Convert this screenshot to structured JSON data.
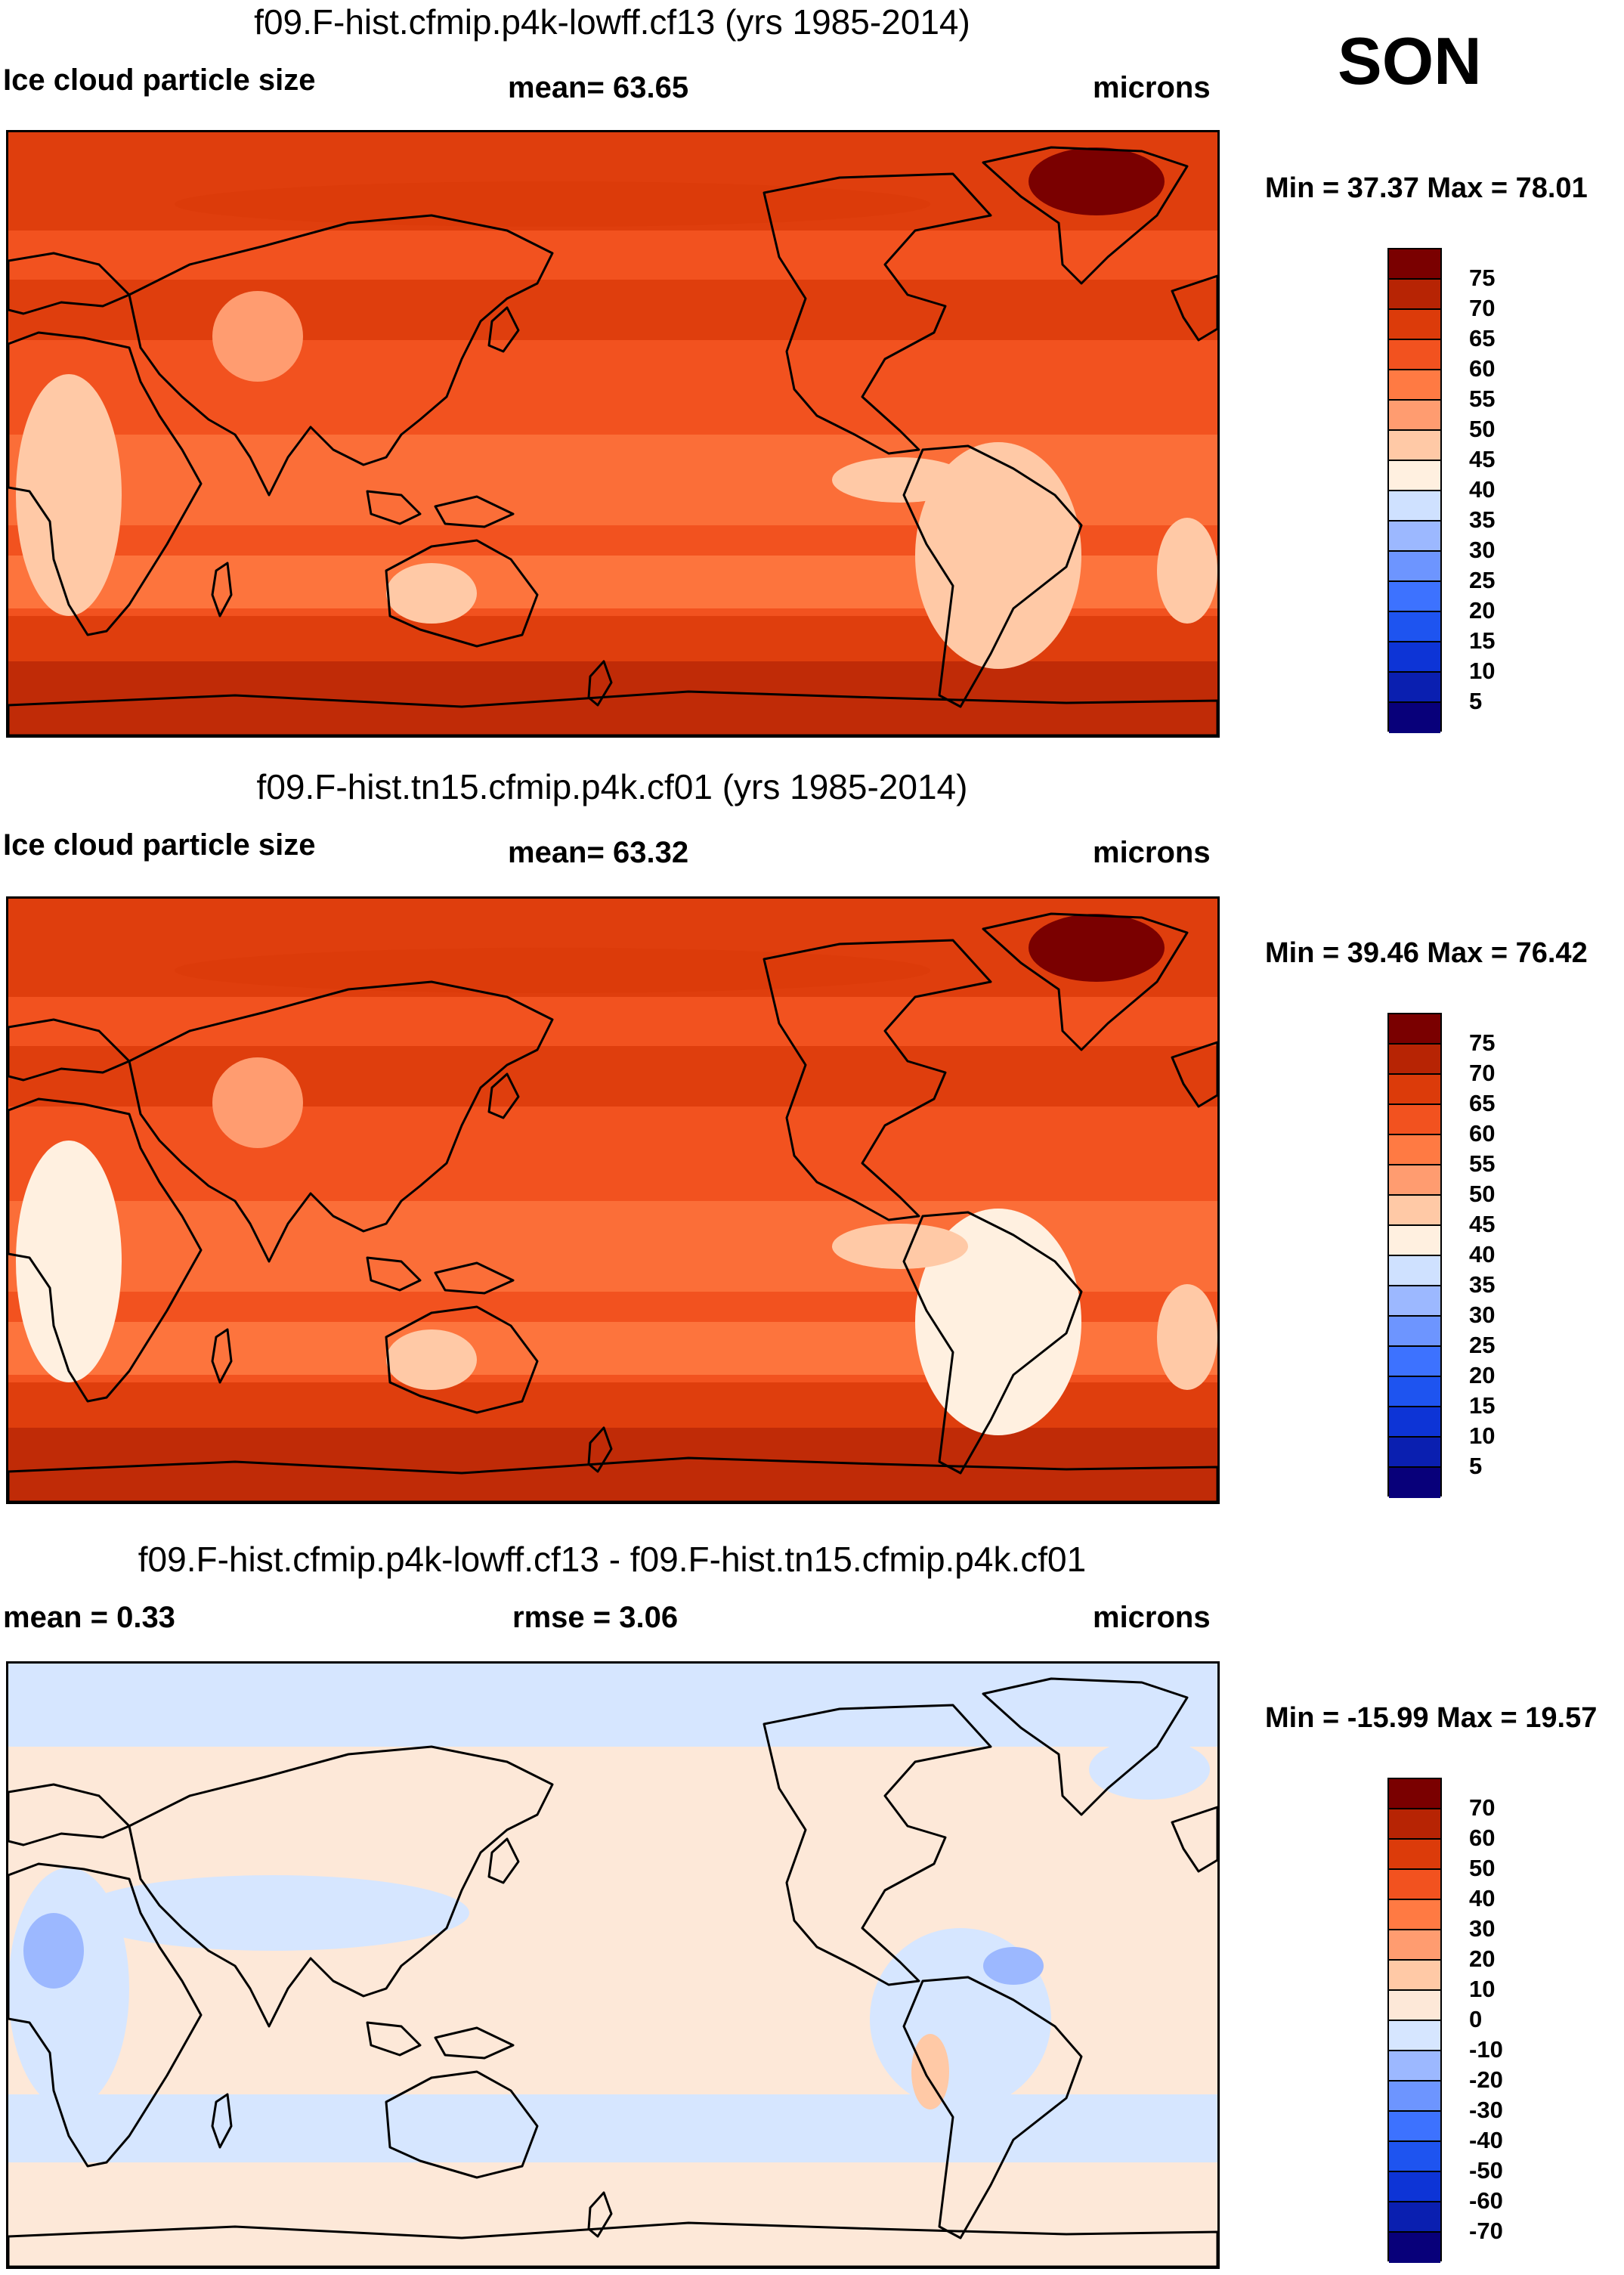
{
  "season": "SON",
  "colors": {
    "coast": "#000000",
    "abs_levels": [
      "#08007a",
      "#0a1fb0",
      "#0d34d6",
      "#1e54f0",
      "#3d72ff",
      "#6d95ff",
      "#9cb8ff",
      "#cfe1ff",
      "#fff0e0",
      "#ffc9a6",
      "#ff9c70",
      "#ff7a43",
      "#f2521f",
      "#dc3b0a",
      "#b72404",
      "#7a0000"
    ],
    "diff_levels": [
      "#08007a",
      "#0a1fb0",
      "#0d34d6",
      "#1e54f0",
      "#3d72ff",
      "#6d95ff",
      "#9cb8ff",
      "#d6e6ff",
      "#fde8d8",
      "#ffc9a6",
      "#ff9c70",
      "#ff7a43",
      "#f2521f",
      "#dc3b0a",
      "#b72404",
      "#7a0000"
    ]
  },
  "chart_data": [
    {
      "type": "heatmap",
      "title": "f09.F-hist.cfmip.p4k-lowff.cf13 (yrs 1985-2014)",
      "left_label": "Ice cloud particle size",
      "stat_label": "mean=  63.65",
      "units": "microns",
      "mean": 63.65,
      "min_max_label": "Min =  37.37 Max =  78.01",
      "min": 37.37,
      "max": 78.01,
      "colorbar_labels": [
        "75",
        "70",
        "65",
        "60",
        "55",
        "50",
        "45",
        "40",
        "35",
        "30",
        "25",
        "20",
        "15",
        "10",
        "5"
      ]
    },
    {
      "type": "heatmap",
      "title": "f09.F-hist.tn15.cfmip.p4k.cf01 (yrs 1985-2014)",
      "left_label": "Ice cloud particle size",
      "stat_label": "mean=  63.32",
      "units": "microns",
      "mean": 63.32,
      "min_max_label": "Min =  39.46 Max =  76.42",
      "min": 39.46,
      "max": 76.42,
      "colorbar_labels": [
        "75",
        "70",
        "65",
        "60",
        "55",
        "50",
        "45",
        "40",
        "35",
        "30",
        "25",
        "20",
        "15",
        "10",
        "5"
      ]
    },
    {
      "type": "heatmap",
      "title": "f09.F-hist.cfmip.p4k-lowff.cf13 - f09.F-hist.tn15.cfmip.p4k.cf01",
      "left_label": "mean =   0.33",
      "stat_label": "rmse =   3.06",
      "units": "microns",
      "mean": 0.33,
      "rmse": 3.06,
      "min_max_label": "Min = -15.99 Max =  19.57",
      "min": -15.99,
      "max": 19.57,
      "colorbar_labels": [
        "70",
        "60",
        "50",
        "40",
        "30",
        "20",
        "10",
        "0",
        "-10",
        "-20",
        "-30",
        "-40",
        "-50",
        "-60",
        "-70"
      ]
    }
  ]
}
